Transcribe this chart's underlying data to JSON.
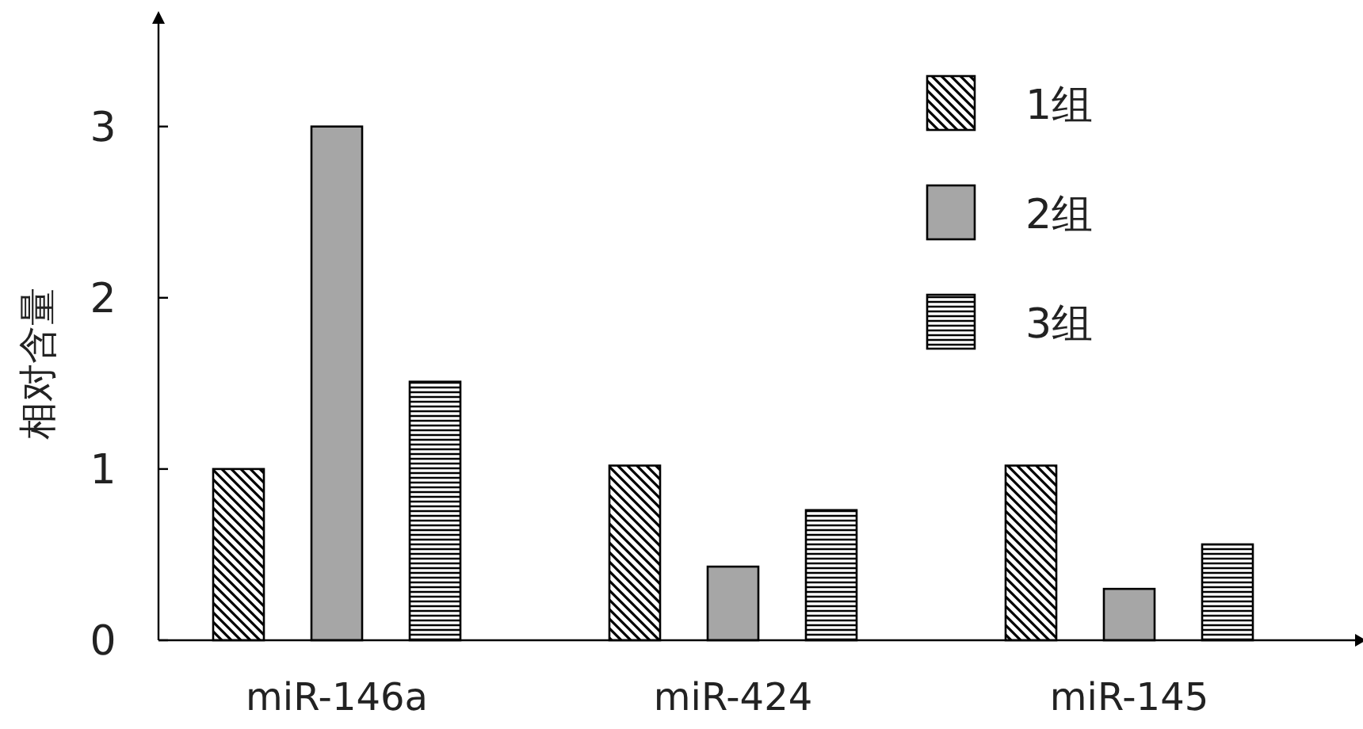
{
  "chart_data": {
    "type": "bar",
    "ylabel": "相对含量",
    "categories": [
      "miR-146a",
      "miR-424",
      "miR-145"
    ],
    "series": [
      {
        "name": "1组",
        "color": "#000000",
        "values": [
          1,
          1.02,
          1.02
        ]
      },
      {
        "name": "2组",
        "color": "#a6a6a6",
        "values": [
          3,
          0.43,
          0.3
        ]
      },
      {
        "name": "3组",
        "color": "#000000",
        "values": [
          1.51,
          0.76,
          0.56
        ]
      }
    ],
    "ylim": [
      0,
      3.6
    ],
    "yticks": [
      0,
      1,
      2,
      3
    ],
    "legend": "top right",
    "grid": false
  }
}
